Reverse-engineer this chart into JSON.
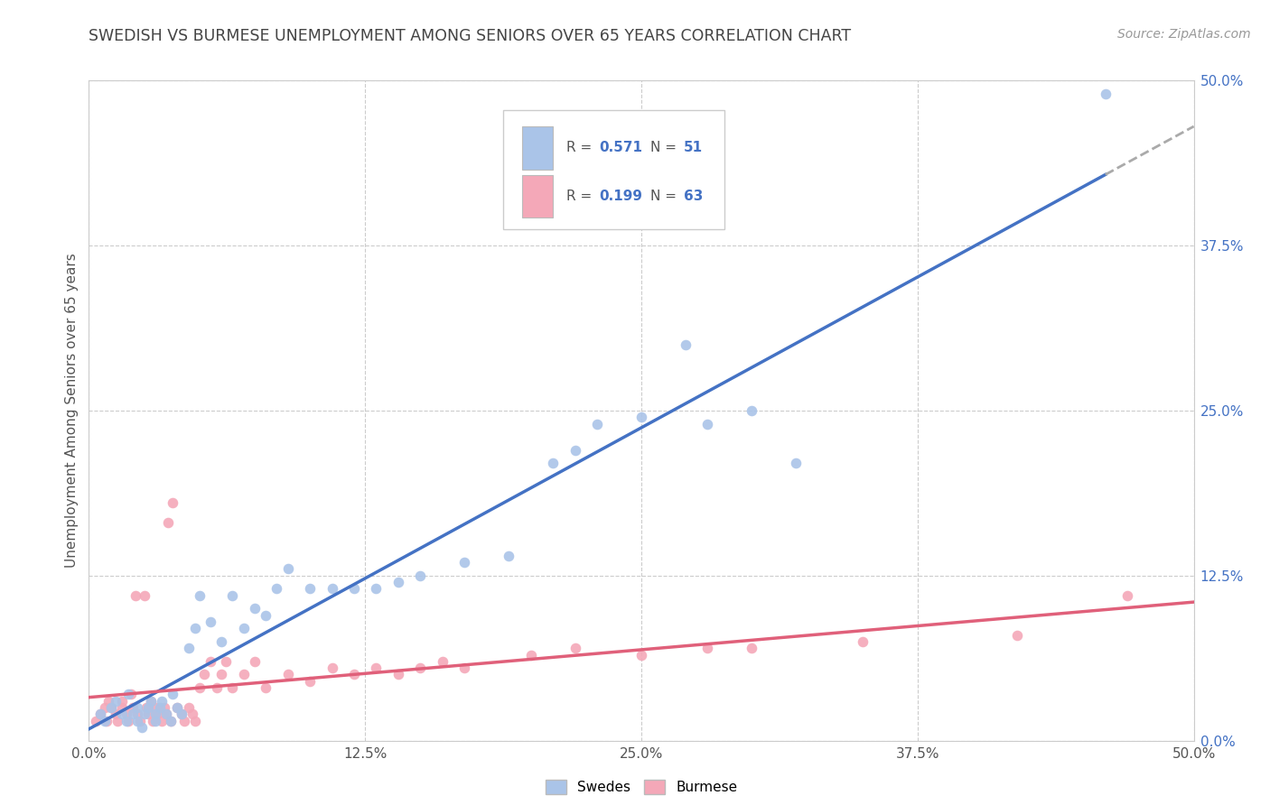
{
  "title": "SWEDISH VS BURMESE UNEMPLOYMENT AMONG SENIORS OVER 65 YEARS CORRELATION CHART",
  "source": "Source: ZipAtlas.com",
  "ylabel": "Unemployment Among Seniors over 65 years",
  "xlim": [
    0.0,
    0.5
  ],
  "ylim": [
    0.0,
    0.5
  ],
  "ticks": [
    0.0,
    0.125,
    0.25,
    0.375,
    0.5
  ],
  "xticklabels": [
    "0.0%",
    "12.5%",
    "25.0%",
    "37.5%",
    "50.0%"
  ],
  "yticklabels_right": [
    "0.0%",
    "12.5%",
    "25.0%",
    "37.5%",
    "50.0%"
  ],
  "legend_label_swedish": "Swedes",
  "legend_label_burmese": "Burmese",
  "swedish_color": "#aac4e8",
  "burmese_color": "#f4a8b8",
  "trend_swedish_color": "#4472c4",
  "trend_burmese_color": "#e0607a",
  "trend_ext_color": "#aaaaaa",
  "background_color": "#ffffff",
  "grid_color": "#cccccc",
  "title_color": "#444444",
  "axis_label_color": "#555555",
  "right_axis_color": "#4472c4",
  "swedish_x": [
    0.005,
    0.007,
    0.01,
    0.012,
    0.015,
    0.017,
    0.018,
    0.02,
    0.022,
    0.022,
    0.024,
    0.025,
    0.027,
    0.028,
    0.03,
    0.03,
    0.032,
    0.033,
    0.035,
    0.037,
    0.038,
    0.04,
    0.042,
    0.045,
    0.048,
    0.05,
    0.055,
    0.06,
    0.065,
    0.07,
    0.075,
    0.08,
    0.085,
    0.09,
    0.1,
    0.11,
    0.12,
    0.13,
    0.14,
    0.15,
    0.17,
    0.19,
    0.21,
    0.22,
    0.23,
    0.25,
    0.27,
    0.28,
    0.3,
    0.32,
    0.46
  ],
  "swedish_y": [
    0.02,
    0.015,
    0.025,
    0.03,
    0.02,
    0.015,
    0.035,
    0.02,
    0.015,
    0.025,
    0.01,
    0.02,
    0.025,
    0.03,
    0.02,
    0.015,
    0.025,
    0.03,
    0.02,
    0.015,
    0.035,
    0.025,
    0.02,
    0.07,
    0.085,
    0.11,
    0.09,
    0.075,
    0.11,
    0.085,
    0.1,
    0.095,
    0.115,
    0.13,
    0.115,
    0.115,
    0.115,
    0.115,
    0.12,
    0.125,
    0.135,
    0.14,
    0.21,
    0.22,
    0.24,
    0.245,
    0.3,
    0.24,
    0.25,
    0.21,
    0.49
  ],
  "burmese_x": [
    0.003,
    0.005,
    0.007,
    0.008,
    0.009,
    0.01,
    0.012,
    0.013,
    0.015,
    0.015,
    0.017,
    0.018,
    0.019,
    0.02,
    0.021,
    0.022,
    0.023,
    0.025,
    0.026,
    0.027,
    0.028,
    0.029,
    0.03,
    0.031,
    0.033,
    0.034,
    0.035,
    0.036,
    0.037,
    0.038,
    0.04,
    0.042,
    0.043,
    0.045,
    0.047,
    0.048,
    0.05,
    0.052,
    0.055,
    0.058,
    0.06,
    0.062,
    0.065,
    0.07,
    0.075,
    0.08,
    0.09,
    0.1,
    0.11,
    0.12,
    0.13,
    0.14,
    0.15,
    0.16,
    0.17,
    0.2,
    0.22,
    0.25,
    0.28,
    0.3,
    0.35,
    0.42,
    0.47
  ],
  "burmese_y": [
    0.015,
    0.02,
    0.025,
    0.015,
    0.03,
    0.025,
    0.02,
    0.015,
    0.025,
    0.03,
    0.02,
    0.015,
    0.035,
    0.025,
    0.11,
    0.02,
    0.015,
    0.11,
    0.025,
    0.02,
    0.03,
    0.015,
    0.025,
    0.02,
    0.015,
    0.025,
    0.02,
    0.165,
    0.015,
    0.18,
    0.025,
    0.02,
    0.015,
    0.025,
    0.02,
    0.015,
    0.04,
    0.05,
    0.06,
    0.04,
    0.05,
    0.06,
    0.04,
    0.05,
    0.06,
    0.04,
    0.05,
    0.045,
    0.055,
    0.05,
    0.055,
    0.05,
    0.055,
    0.06,
    0.055,
    0.065,
    0.07,
    0.065,
    0.07,
    0.07,
    0.075,
    0.08,
    0.11
  ]
}
